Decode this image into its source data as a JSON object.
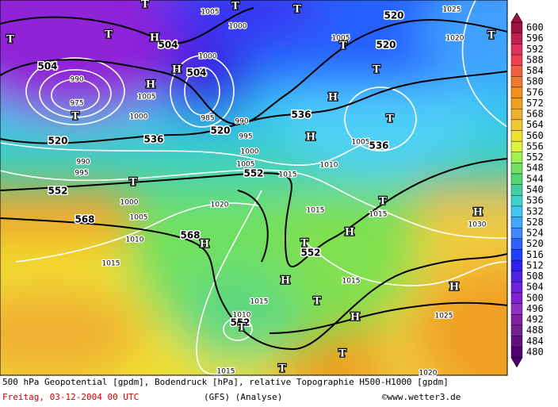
{
  "map": {
    "contour_labels": [
      "504",
      "520",
      "552",
      "568",
      "536",
      "504",
      "504",
      "520",
      "536",
      "552",
      "568",
      "552",
      "552",
      "520",
      "520",
      "536"
    ],
    "isobar_labels": [
      "1005",
      "1000",
      "1005",
      "1000",
      "990",
      "975",
      "1000",
      "1005",
      "985",
      "990",
      "995",
      "1000",
      "1005",
      "1015",
      "995",
      "990",
      "1000",
      "1005",
      "1010",
      "1015",
      "1020",
      "1015",
      "1015",
      "1030",
      "1015",
      "1015",
      "1010",
      "1025",
      "1020",
      "1025",
      "1005",
      "1010",
      "1015",
      "1020"
    ],
    "pressure_systems": [
      "T",
      "T",
      "H",
      "T",
      "T",
      "T",
      "H",
      "H",
      "T",
      "H",
      "T",
      "H",
      "T",
      "T",
      "T",
      "T",
      "H",
      "H",
      "H",
      "T",
      "H",
      "T",
      "H",
      "T",
      "T",
      "T",
      "H",
      "T"
    ]
  },
  "legend": {
    "labels": [
      600,
      596,
      592,
      588,
      584,
      580,
      576,
      572,
      568,
      564,
      560,
      556,
      552,
      548,
      544,
      540,
      536,
      532,
      528,
      524,
      520,
      516,
      512,
      508,
      504,
      500,
      496,
      492,
      488,
      484,
      480
    ],
    "colors": [
      "#a01040",
      "#c02050",
      "#e03060",
      "#f04050",
      "#f06040",
      "#f07830",
      "#f09020",
      "#f0a020",
      "#f0b030",
      "#f0c830",
      "#f0e030",
      "#e0f040",
      "#a0f050",
      "#70e060",
      "#50d870",
      "#40d0a0",
      "#40d0d0",
      "#40c8f0",
      "#40a8ff",
      "#4088ff",
      "#3060ff",
      "#2040ff",
      "#3020f0",
      "#5020e0",
      "#7020e0",
      "#8020d0",
      "#9030c0",
      "#8020a0",
      "#702090",
      "#601080",
      "#500070"
    ]
  },
  "caption": {
    "line1": "500 hPa Geopotential [gpdm], Bodendruck [hPa], relative Topographie H500-H1000 [gpdm]",
    "date": "Freitag, 03-12-2004  00 UTC",
    "model": "(GFS)  (Analyse)",
    "copyright": "©www.wetter3.de"
  }
}
